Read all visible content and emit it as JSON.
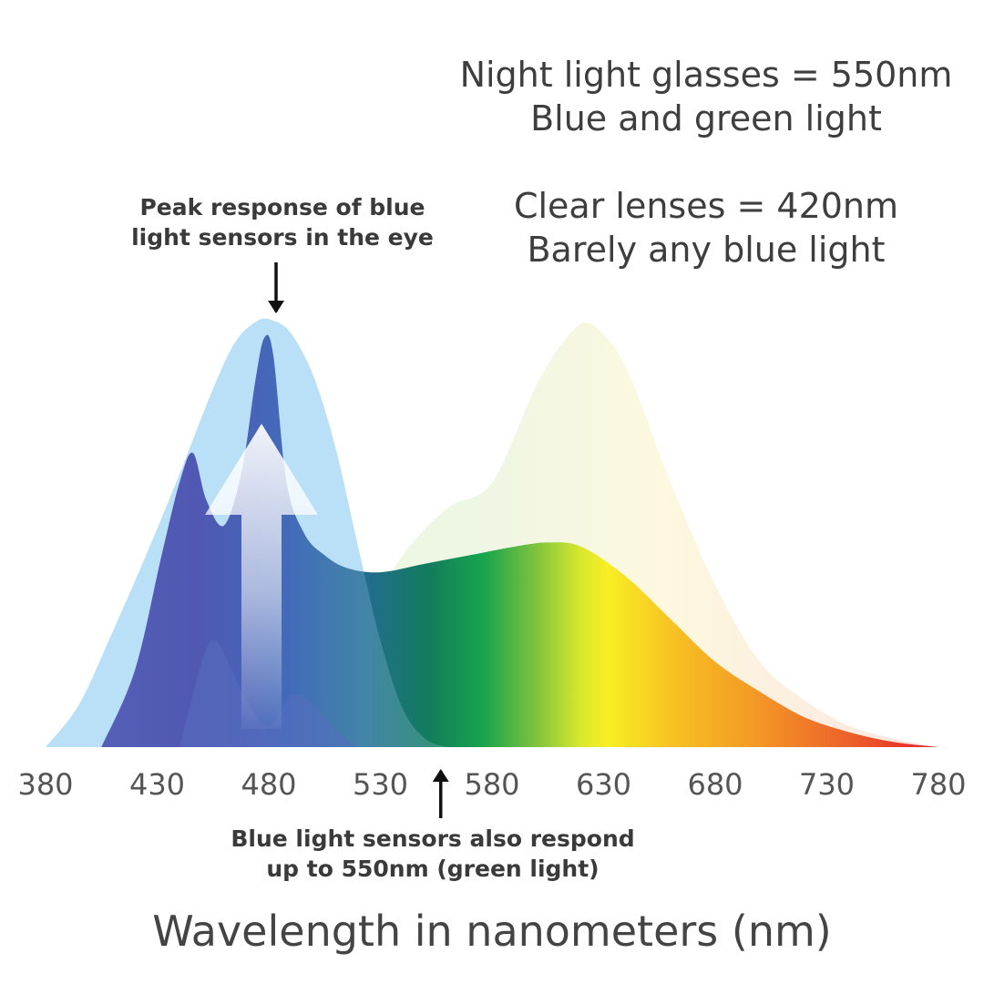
{
  "notes": {
    "night_line1": "Night light glasses = 550nm",
    "night_line2": "Blue and green light",
    "clear_line1": "Clear lenses = 420nm",
    "clear_line2": "Barely any blue light",
    "peak_line1": "Peak response of blue",
    "peak_line2": "light sensors in the eye",
    "sensors_line1": "Blue light sensors also respond",
    "sensors_line2": "up to 550nm (green light)"
  },
  "chart_data": {
    "type": "area",
    "title": "",
    "xlabel": "Wavelength in nanometers (nm)",
    "ylabel": "",
    "xlim": [
      380,
      780
    ],
    "xticks": [
      380,
      430,
      480,
      530,
      580,
      630,
      680,
      730,
      780
    ],
    "grid": false,
    "series": [
      {
        "name": "",
        "role": "blue light sensor response",
        "color": "#b9e0f7",
        "x": [
          380,
          395,
          410,
          425,
          440,
          455,
          465,
          475,
          482,
          490,
          500,
          510,
          520,
          530,
          540,
          550,
          560
        ],
        "values": [
          0,
          0.1,
          0.27,
          0.45,
          0.64,
          0.84,
          0.95,
          1.0,
          1.0,
          0.97,
          0.87,
          0.7,
          0.47,
          0.25,
          0.09,
          0.02,
          0
        ]
      },
      {
        "name": "",
        "role": "light spectrum",
        "color": "spectrum",
        "x": [
          405,
          420,
          432,
          440,
          446,
          452,
          460,
          468,
          474,
          478,
          482,
          488,
          496,
          505,
          515,
          530,
          550,
          570,
          590,
          605,
          620,
          640,
          660,
          680,
          700,
          720,
          740,
          760,
          780
        ],
        "values": [
          0,
          0.18,
          0.45,
          0.62,
          0.69,
          0.58,
          0.52,
          0.65,
          0.86,
          0.96,
          0.92,
          0.62,
          0.5,
          0.45,
          0.42,
          0.41,
          0.43,
          0.45,
          0.47,
          0.48,
          0.47,
          0.4,
          0.3,
          0.2,
          0.13,
          0.07,
          0.035,
          0.012,
          0
        ]
      },
      {
        "name": "",
        "role": "faint warm bump",
        "color": "#fdf6dc",
        "x": [
          520,
          540,
          560,
          580,
          600,
          615,
          625,
          640,
          660,
          680,
          700,
          720,
          740,
          760,
          780
        ],
        "values": [
          0.28,
          0.45,
          0.56,
          0.62,
          0.85,
          0.97,
          0.99,
          0.89,
          0.62,
          0.38,
          0.2,
          0.11,
          0.05,
          0.02,
          0
        ]
      },
      {
        "name": "",
        "role": "overlay band",
        "color": "#3c4fb0",
        "x": [
          440,
          450,
          455,
          460,
          470,
          480,
          490,
          500,
          510,
          520
        ],
        "values": [
          0,
          0.2,
          0.25,
          0.22,
          0.11,
          0.05,
          0.12,
          0.1,
          0.04,
          0
        ]
      }
    ],
    "annotations": [
      {
        "text": "Peak response of blue light sensors in the eye",
        "x": 480,
        "arrow": "down"
      },
      {
        "text": "Blue light sensors also respond up to 550nm (green light)",
        "x": 555,
        "arrow": "up"
      }
    ]
  }
}
